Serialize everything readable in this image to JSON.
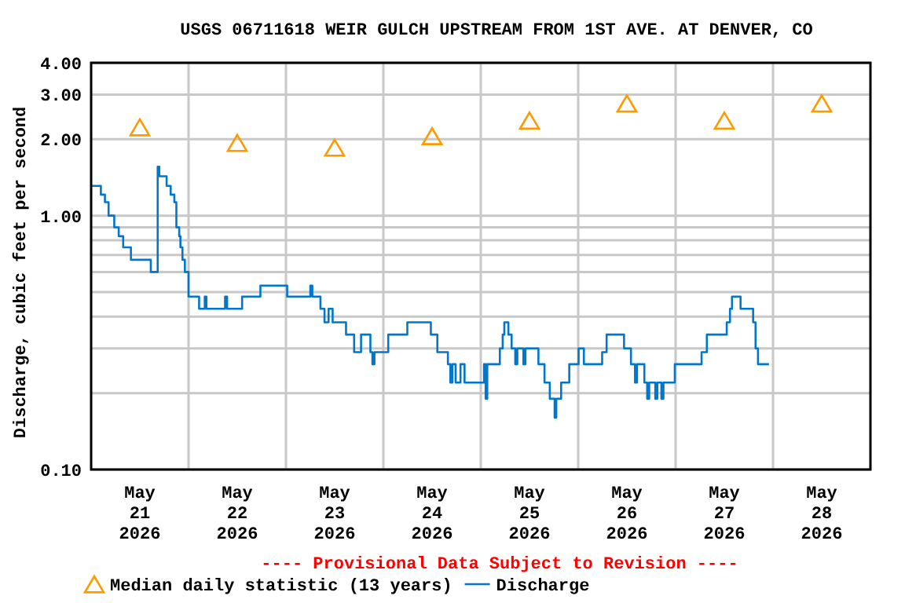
{
  "chart_data": {
    "type": "step",
    "title": "USGS 06711618 WEIR GULCH UPSTREAM FROM 1ST AVE. AT DENVER, CO",
    "ylabel": "Discharge, cubic feet per second",
    "annotations": [
      "---- Provisional Data Subject to Revision ----"
    ],
    "log": "y",
    "grid": true,
    "legend": "bottom",
    "xlim": [
      "2026-05-21T00:00",
      "2026-05-29T00:00"
    ],
    "ylim": [
      0.1,
      4
    ],
    "yticks": [
      {
        "value": 0.1,
        "label": "0.10"
      },
      {
        "value": 0.2,
        "label": null
      },
      {
        "value": 0.3,
        "label": null
      },
      {
        "value": 0.4,
        "label": null
      },
      {
        "value": 0.5,
        "label": null
      },
      {
        "value": 0.6,
        "label": null
      },
      {
        "value": 0.7,
        "label": null
      },
      {
        "value": 0.8,
        "label": null
      },
      {
        "value": 0.9,
        "label": null
      },
      {
        "value": 1,
        "label": "1.00"
      },
      {
        "value": 2,
        "label": "2.00"
      },
      {
        "value": 3,
        "label": "3.00"
      },
      {
        "value": 4,
        "label": "4.00"
      }
    ],
    "xticks": [
      {
        "value": "2026-05-21T12:00",
        "label": "May\n21\n2026"
      },
      {
        "value": "2026-05-22T00:00",
        "label": null
      },
      {
        "value": "2026-05-22T12:00",
        "label": "May\n22\n2026"
      },
      {
        "value": "2026-05-23T00:00",
        "label": null
      },
      {
        "value": "2026-05-23T12:00",
        "label": "May\n23\n2026"
      },
      {
        "value": "2026-05-24T00:00",
        "label": null
      },
      {
        "value": "2026-05-24T12:00",
        "label": "May\n24\n2026"
      },
      {
        "value": "2026-05-25T00:00",
        "label": null
      },
      {
        "value": "2026-05-25T12:00",
        "label": "May\n25\n2026"
      },
      {
        "value": "2026-05-26T00:00",
        "label": null
      },
      {
        "value": "2026-05-26T12:00",
        "label": "May\n26\n2026"
      },
      {
        "value": "2026-05-27T00:00",
        "label": null
      },
      {
        "value": "2026-05-27T12:00",
        "label": "May\n27\n2026"
      },
      {
        "value": "2026-05-28T00:00",
        "label": null
      },
      {
        "value": "2026-05-28T12:00",
        "label": "May\n28\n2026"
      }
    ],
    "series": [
      {
        "name": "Median daily statistic (13 years)",
        "type": "scatter",
        "marker": "triangle",
        "color": "#ff9900",
        "x": [
          "2026-05-21T12:00",
          "2026-05-22T12:00",
          "2026-05-23T12:00",
          "2026-05-24T12:00",
          "2026-05-25T12:00",
          "2026-05-26T12:00",
          "2026-05-27T12:00",
          "2026-05-28T12:00"
        ],
        "values": [
          2.2,
          1.91,
          1.83,
          2.03,
          2.34,
          2.73,
          2.34,
          2.73
        ]
      },
      {
        "name": "Discharge",
        "color": "#0077cc",
        "x": [
          "2026-05-21T00:00",
          "2026-05-21T02:24",
          "2026-05-21T03:24",
          "2026-05-21T04:18",
          "2026-05-21T05:42",
          "2026-05-21T06:48",
          "2026-05-21T07:54",
          "2026-05-21T09:48",
          "2026-05-21T14:42",
          "2026-05-21T16:24",
          "2026-05-21T16:48",
          "2026-05-21T18:36",
          "2026-05-21T19:36",
          "2026-05-21T20:30",
          "2026-05-21T21:00",
          "2026-05-21T21:42",
          "2026-05-21T22:00",
          "2026-05-21T22:30",
          "2026-05-21T23:06",
          "2026-05-22T00:00",
          "2026-05-22T02:36",
          "2026-05-22T04:00",
          "2026-05-22T04:24",
          "2026-05-22T09:00",
          "2026-05-22T09:30",
          "2026-05-22T13:12",
          "2026-05-22T17:42",
          "2026-05-23T00:18",
          "2026-05-23T06:00",
          "2026-05-23T06:30",
          "2026-05-23T08:30",
          "2026-05-23T09:30",
          "2026-05-23T10:30",
          "2026-05-23T11:30",
          "2026-05-23T14:48",
          "2026-05-23T16:48",
          "2026-05-23T18:30",
          "2026-05-23T20:48",
          "2026-05-23T21:18",
          "2026-05-23T21:48",
          "2026-05-24T01:12",
          "2026-05-24T05:54",
          "2026-05-24T11:42",
          "2026-05-24T13:18",
          "2026-05-24T15:54",
          "2026-05-24T16:30",
          "2026-05-24T17:00",
          "2026-05-24T17:48",
          "2026-05-24T19:00",
          "2026-05-24T20:00",
          "2026-05-25T00:48",
          "2026-05-25T01:12",
          "2026-05-25T01:36",
          "2026-05-25T04:42",
          "2026-05-25T05:24",
          "2026-05-25T05:48",
          "2026-05-25T06:48",
          "2026-05-25T07:36",
          "2026-05-25T08:30",
          "2026-05-25T09:00",
          "2026-05-25T10:30",
          "2026-05-25T11:00",
          "2026-05-25T14:12",
          "2026-05-25T15:42",
          "2026-05-25T17:00",
          "2026-05-25T18:12",
          "2026-05-25T18:36",
          "2026-05-25T19:48",
          "2026-05-25T21:48",
          "2026-05-26T00:06",
          "2026-05-26T01:24",
          "2026-05-26T05:54",
          "2026-05-26T07:00",
          "2026-05-26T11:18",
          "2026-05-26T13:00",
          "2026-05-26T14:00",
          "2026-05-26T14:30",
          "2026-05-26T16:18",
          "2026-05-26T17:00",
          "2026-05-26T17:30",
          "2026-05-26T19:00",
          "2026-05-26T19:30",
          "2026-05-26T20:30",
          "2026-05-26T21:00",
          "2026-05-26T23:48",
          "2026-05-27T06:24",
          "2026-05-27T07:42",
          "2026-05-27T12:36",
          "2026-05-27T13:24",
          "2026-05-27T13:54",
          "2026-05-27T16:00",
          "2026-05-27T19:06",
          "2026-05-27T19:42",
          "2026-05-27T20:18",
          "2026-05-27T23:00"
        ],
        "values": [
          1.31,
          1.21,
          1.13,
          1.0,
          0.9,
          0.83,
          0.75,
          0.67,
          0.6,
          1.56,
          1.43,
          1.31,
          1.21,
          1.13,
          0.9,
          0.83,
          0.75,
          0.67,
          0.6,
          0.48,
          0.43,
          0.48,
          0.43,
          0.48,
          0.43,
          0.48,
          0.53,
          0.48,
          0.53,
          0.48,
          0.43,
          0.38,
          0.43,
          0.38,
          0.34,
          0.29,
          0.34,
          0.29,
          0.26,
          0.29,
          0.34,
          0.38,
          0.34,
          0.29,
          0.26,
          0.22,
          0.26,
          0.22,
          0.26,
          0.22,
          0.26,
          0.19,
          0.26,
          0.3,
          0.34,
          0.38,
          0.34,
          0.3,
          0.26,
          0.3,
          0.26,
          0.3,
          0.26,
          0.22,
          0.19,
          0.16,
          0.19,
          0.22,
          0.26,
          0.3,
          0.26,
          0.29,
          0.34,
          0.3,
          0.26,
          0.22,
          0.26,
          0.22,
          0.19,
          0.22,
          0.19,
          0.22,
          0.19,
          0.22,
          0.26,
          0.29,
          0.34,
          0.38,
          0.43,
          0.48,
          0.43,
          0.38,
          0.3,
          0.26,
          0.26
        ]
      }
    ]
  }
}
